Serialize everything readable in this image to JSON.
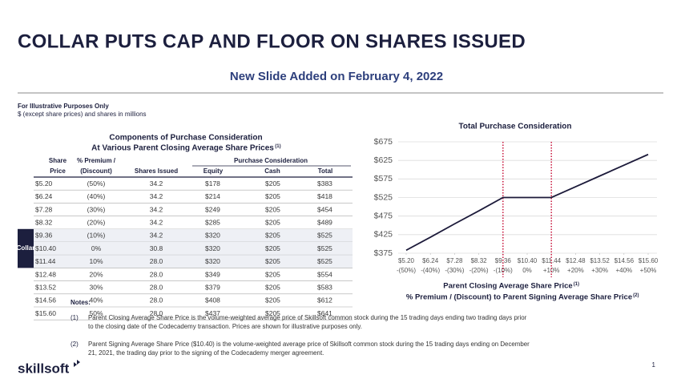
{
  "header": {
    "title": "COLLAR PUTS CAP AND FLOOR ON SHARES ISSUED",
    "subtitle": "New Slide Added on February 4, 2022"
  },
  "disclaimer": [
    "For Illustrative Purposes Only",
    "$ (except share prices) and shares in millions"
  ],
  "table": {
    "title": [
      "Components of Purchase Consideration",
      "At Various Parent Closing Average Share Prices"
    ],
    "title_note": "(1)",
    "group_header": "Purchase Consideration",
    "columns": [
      [
        "Share",
        "Price"
      ],
      [
        "% Premium /",
        "(Discount)"
      ],
      [
        "Shares Issued"
      ],
      [
        "Equity"
      ],
      [
        "Cash"
      ],
      [
        "Total"
      ]
    ],
    "collar_label": "Collar",
    "rows": [
      [
        "$5.20",
        "(50%)",
        "34.2",
        "$178",
        "$205",
        "$383"
      ],
      [
        "$6.24",
        "(40%)",
        "34.2",
        "$214",
        "$205",
        "$418"
      ],
      [
        "$7.28",
        "(30%)",
        "34.2",
        "$249",
        "$205",
        "$454"
      ],
      [
        "$8.32",
        "(20%)",
        "34.2",
        "$285",
        "$205",
        "$489"
      ],
      [
        "$9.36",
        "(10%)",
        "34.2",
        "$320",
        "$205",
        "$525"
      ],
      [
        "$10.40",
        "0%",
        "30.8",
        "$320",
        "$205",
        "$525"
      ],
      [
        "$11.44",
        "10%",
        "28.0",
        "$320",
        "$205",
        "$525"
      ],
      [
        "$12.48",
        "20%",
        "28.0",
        "$349",
        "$205",
        "$554"
      ],
      [
        "$13.52",
        "30%",
        "28.0",
        "$379",
        "$205",
        "$583"
      ],
      [
        "$14.56",
        "40%",
        "28.0",
        "$408",
        "$205",
        "$612"
      ],
      [
        "$15.60",
        "50%",
        "28.0",
        "$437",
        "$205",
        "$641"
      ]
    ]
  },
  "chart_data": {
    "type": "line",
    "title": "Total Purchase Consideration",
    "x": [
      5.2,
      6.24,
      7.28,
      8.32,
      9.36,
      10.4,
      11.44,
      12.48,
      13.52,
      14.56,
      15.6
    ],
    "values": [
      383,
      418,
      454,
      489,
      525,
      525,
      525,
      554,
      583,
      612,
      641
    ],
    "color": "#1c1a3a",
    "xlim": [
      5.2,
      15.6
    ],
    "xticks": [
      {
        "value": 5.2,
        "label": "$5.20"
      },
      {
        "value": 6.24,
        "label": "$6.24"
      },
      {
        "value": 7.28,
        "label": "$7.28"
      },
      {
        "value": 8.32,
        "label": "$8.32"
      },
      {
        "value": 9.36,
        "label": "$9.36"
      },
      {
        "value": 10.4,
        "label": "$10.40"
      },
      {
        "value": 11.44,
        "label": "$11.44"
      },
      {
        "value": 12.48,
        "label": "$12.48"
      },
      {
        "value": 13.52,
        "label": "$13.52"
      },
      {
        "value": 14.56,
        "label": "$14.56"
      },
      {
        "value": 15.6,
        "label": "$15.60"
      }
    ],
    "xtick_sublabels": [
      "-(50%)",
      "-(40%)",
      "-(30%)",
      "-(20%)",
      "-(10%)",
      "0%",
      "+10%",
      "+20%",
      "+30%",
      "+40%",
      "+50%"
    ],
    "ylim": [
      375,
      675
    ],
    "yticks": [
      {
        "value": 375,
        "label": "$375"
      },
      {
        "value": 425,
        "label": "$425"
      },
      {
        "value": 475,
        "label": "$475"
      },
      {
        "value": 525,
        "label": "$525"
      },
      {
        "value": 575,
        "label": "$575"
      },
      {
        "value": 625,
        "label": "$625"
      },
      {
        "value": 675,
        "label": "$675"
      }
    ],
    "grid": true,
    "reference_x": [
      9.36,
      11.44
    ],
    "reference_color": "#c8163c",
    "xlabel": [
      "Parent Closing Average Share Price",
      "% Premium / (Discount) to Parent Signing Average Share Price"
    ],
    "xlabel_notes": [
      "(1)",
      "(2)"
    ]
  },
  "notes": {
    "heading": "Notes:",
    "items": [
      {
        "marker": "(1)",
        "lines": [
          "Parent Closing Average Share Price is the volume-weighted average price of Skillsoft common stock during the 15 trading days ending two trading days prior",
          "to the closing date of the Codecademy transaction.  Prices are shown for illustrative purposes only."
        ]
      },
      {
        "marker": "(2)",
        "lines": [
          "Parent Signing Average Share Price ($10.40) is the volume-weighted average price of Skillsoft common stock during the 15 trading days ending on December",
          "21, 2021, the trading day prior to the signing of the Codecademy merger agreement."
        ]
      }
    ]
  },
  "footer": {
    "logo": "skillsoft",
    "page_number": "1"
  }
}
